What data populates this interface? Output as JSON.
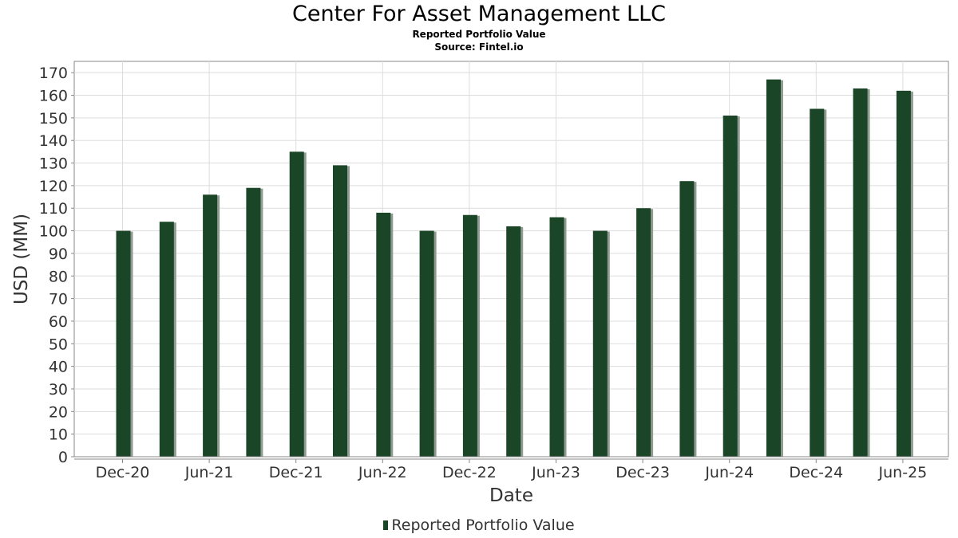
{
  "chart_data": {
    "type": "bar",
    "title": "Center For Asset Management LLC",
    "subtitle": "Reported Portfolio Value",
    "source": "Source: Fintel.io",
    "xlabel": "Date",
    "ylabel": "USD (MM)",
    "ylim": [
      0,
      175
    ],
    "yticks": [
      0,
      10,
      20,
      30,
      40,
      50,
      60,
      70,
      80,
      90,
      100,
      110,
      120,
      130,
      140,
      150,
      160,
      170
    ],
    "x_tick_labels": [
      "Dec-20",
      "Jun-21",
      "Dec-21",
      "Jun-22",
      "Dec-22",
      "Jun-23",
      "Dec-23",
      "Jun-24",
      "Dec-24",
      "Jun-25"
    ],
    "categories": [
      "Dec-20",
      "Mar-21",
      "Jun-21",
      "Sep-21",
      "Dec-21",
      "Mar-22",
      "Jun-22",
      "Sep-22",
      "Dec-22",
      "Mar-23",
      "Jun-23",
      "Sep-23",
      "Dec-23",
      "Mar-24",
      "Jun-24",
      "Sep-24",
      "Dec-24",
      "Mar-25",
      "Jun-25"
    ],
    "series": [
      {
        "name": "Reported Portfolio Value",
        "color": "#1a4527",
        "values": [
          100,
          104,
          116,
          119,
          135,
          129,
          108,
          100,
          107,
          102,
          106,
          100,
          110,
          122,
          151,
          167,
          154,
          163,
          162
        ]
      }
    ],
    "grid": true,
    "legend": "bottom-center"
  }
}
